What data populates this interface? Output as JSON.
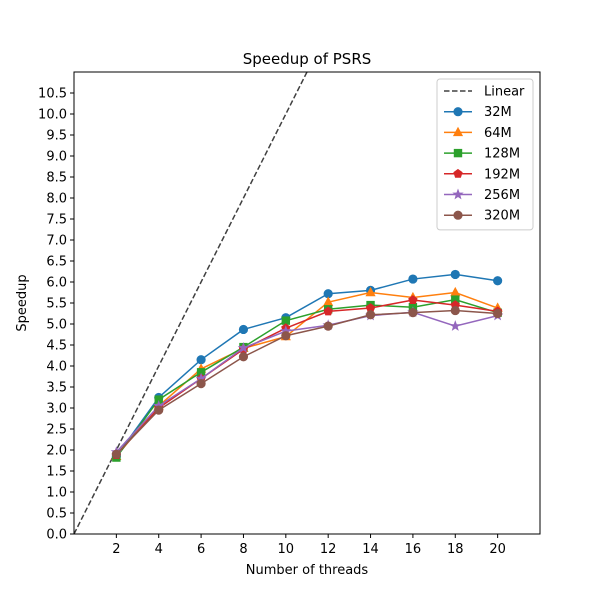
{
  "chart_data": {
    "type": "line",
    "title": "Speedup of PSRS",
    "xlabel": "Number of threads",
    "ylabel": "Speedup",
    "xlim": [
      0,
      22
    ],
    "ylim": [
      0,
      11
    ],
    "xticks": [
      2,
      4,
      6,
      8,
      10,
      12,
      14,
      16,
      18,
      20
    ],
    "yticks": [
      0.0,
      0.5,
      1.0,
      1.5,
      2.0,
      2.5,
      3.0,
      3.5,
      4.0,
      4.5,
      5.0,
      5.5,
      6.0,
      6.5,
      7.0,
      7.5,
      8.0,
      8.5,
      9.0,
      9.5,
      10.0,
      10.5
    ],
    "grid": false,
    "legend_position": "top-right",
    "x": [
      2,
      4,
      6,
      8,
      10,
      12,
      14,
      16,
      18,
      20
    ],
    "series": [
      {
        "name": "Linear",
        "x": [
          0,
          22
        ],
        "values": [
          0,
          22
        ],
        "color": "#404040",
        "style": "dashed",
        "marker": "none"
      },
      {
        "name": "32M",
        "values": [
          1.85,
          3.25,
          4.15,
          4.87,
          5.15,
          5.72,
          5.8,
          6.07,
          6.18,
          6.03
        ],
        "color": "#1f77b4",
        "marker": "circle"
      },
      {
        "name": "64M",
        "values": [
          1.85,
          3.05,
          3.93,
          4.42,
          4.7,
          5.52,
          5.75,
          5.63,
          5.75,
          5.38
        ],
        "color": "#ff7f0e",
        "marker": "triangle"
      },
      {
        "name": "128M",
        "values": [
          1.82,
          3.2,
          3.85,
          4.45,
          5.08,
          5.35,
          5.45,
          5.4,
          5.58,
          5.27
        ],
        "color": "#2ca02c",
        "marker": "square"
      },
      {
        "name": "192M",
        "values": [
          1.88,
          3.0,
          3.7,
          4.4,
          4.9,
          5.3,
          5.38,
          5.57,
          5.45,
          5.3
        ],
        "color": "#d62728",
        "marker": "pentagon"
      },
      {
        "name": "256M",
        "values": [
          1.95,
          3.05,
          3.7,
          4.43,
          4.83,
          4.97,
          5.2,
          5.28,
          4.95,
          5.2
        ],
        "color": "#9467bd",
        "marker": "star"
      },
      {
        "name": "320M",
        "values": [
          1.9,
          2.95,
          3.58,
          4.22,
          4.72,
          4.95,
          5.22,
          5.27,
          5.32,
          5.25
        ],
        "color": "#8c564b",
        "marker": "circle"
      }
    ]
  }
}
